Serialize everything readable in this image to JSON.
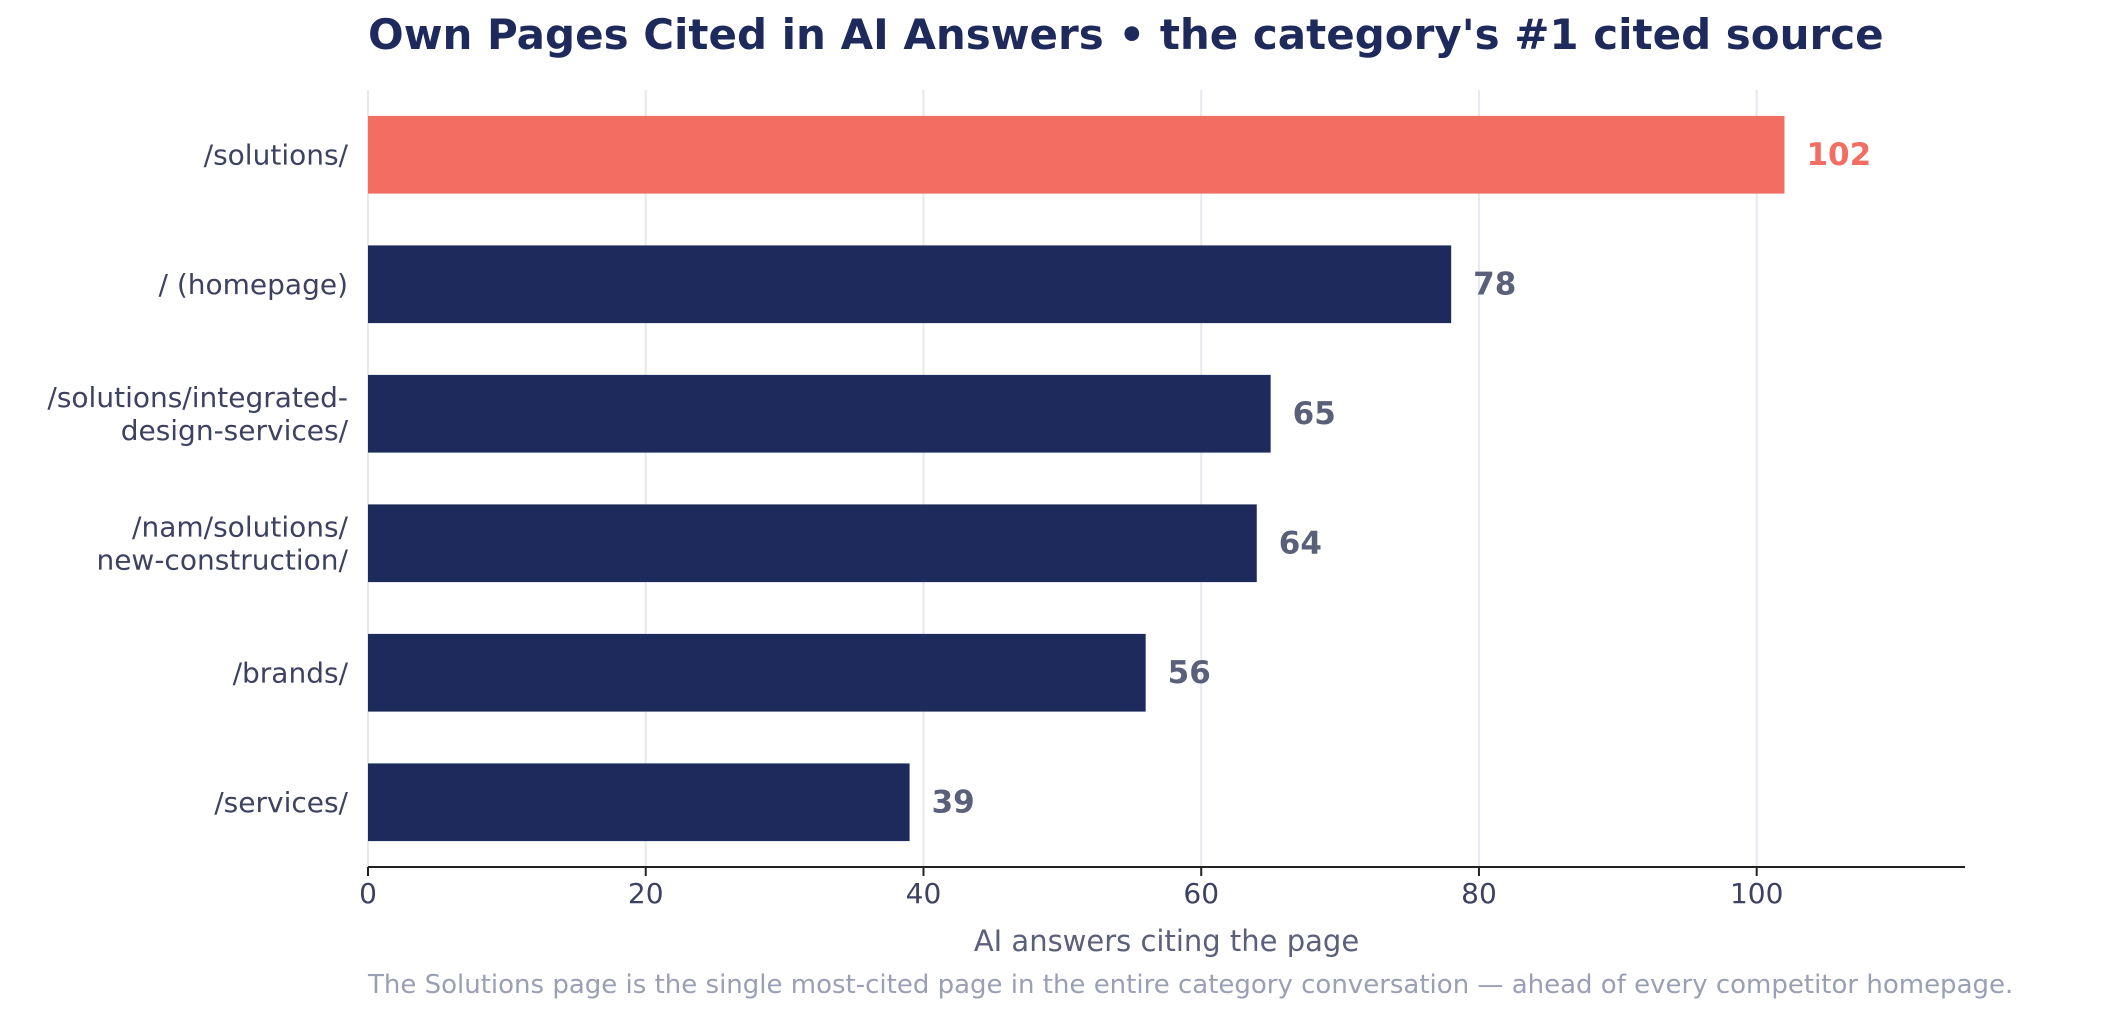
{
  "chart_data": {
    "type": "bar",
    "orientation": "horizontal",
    "title": "Own Pages Cited in AI Answers  •  the category's #1 cited source",
    "xlabel": "AI answers citing the page",
    "ylabel": "",
    "categories": [
      [
        "/solutions/"
      ],
      [
        "/ (homepage)"
      ],
      [
        "/solutions/integrated-",
        "design-services/"
      ],
      [
        "/nam/solutions/",
        "new-construction/"
      ],
      [
        "/brands/"
      ],
      [
        "/services/"
      ]
    ],
    "values": [
      102,
      78,
      65,
      64,
      56,
      39
    ],
    "value_labels": [
      "102",
      "78",
      "65",
      "64",
      "56",
      "39"
    ],
    "highlight_index": 0,
    "xlim": [
      0,
      115
    ],
    "xticks": [
      0,
      20,
      40,
      60,
      80,
      100
    ],
    "xtick_labels": [
      "0",
      "20",
      "40",
      "60",
      "80",
      "100"
    ],
    "grid": "vertical",
    "legend": "none",
    "footnote": "The Solutions page is the single most-cited page in the entire category conversation — ahead of every competitor homepage.",
    "colors": {
      "bar": "#1f2a5c",
      "highlight": "#f26d62",
      "value_label": "#5a607a",
      "title": "#1f2a5c",
      "category_label": "#3d4260",
      "tick_label": "#3d4260",
      "axis_label": "#5a607a",
      "footnote": "#9aa0b4",
      "grid": "#e8e9f0",
      "axis_line": "#222222"
    }
  }
}
